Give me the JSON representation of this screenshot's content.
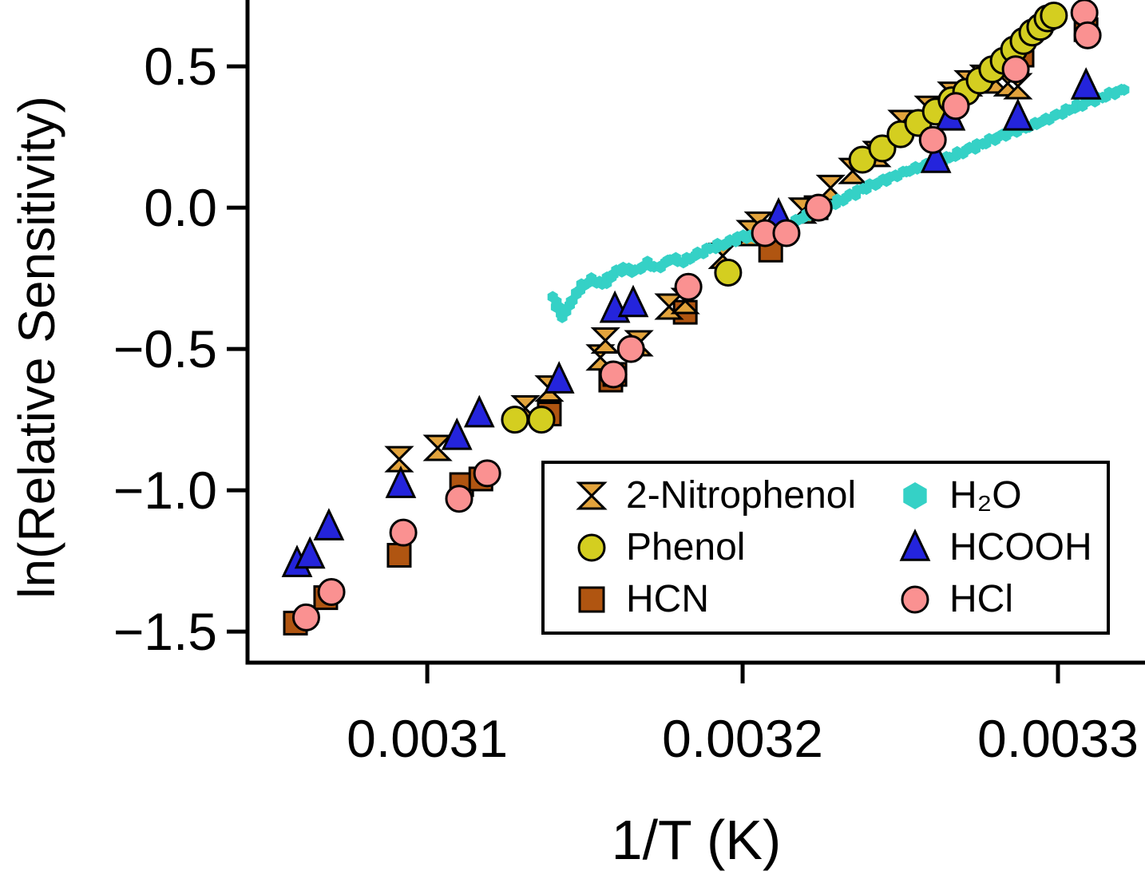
{
  "figure": {
    "background": "#FFFFFF"
  },
  "chart_data": {
    "type": "scatter",
    "title": "",
    "xlabel": "1/T (K)",
    "ylabel": "ln(Relative Sensitivity)",
    "xlim": [
      0.003043,
      0.0033276
    ],
    "ylim": [
      -1.61,
      0.735
    ],
    "grid": false,
    "legend_position": "inside-lower-right-box",
    "xticks": {
      "values": [
        0.0031,
        0.0032,
        0.0033
      ],
      "labels": [
        "0.0031",
        "0.0032",
        "0.0033"
      ]
    },
    "yticks": {
      "values": [
        0.5,
        0.0,
        -0.5,
        -1.0,
        -1.5
      ],
      "labels": [
        "0.5",
        "0.0",
        "−0.5",
        "−1.0",
        "−1.5"
      ]
    },
    "series": [
      {
        "name": "2-Nitrophenol",
        "label": "2-Nitrophenol",
        "marker": "bowtie",
        "icon": "bowtie-marker-icon",
        "color": "#E2A33C",
        "edge": "#000000",
        "points": [
          [
            0.0030911,
            -0.89
          ],
          [
            0.0031033,
            -0.85
          ],
          [
            0.0031311,
            -0.71
          ],
          [
            0.0031387,
            -0.64
          ],
          [
            0.0031549,
            -0.53
          ],
          [
            0.0031565,
            -0.47
          ],
          [
            0.0031671,
            -0.48
          ],
          [
            0.0031767,
            -0.35
          ],
          [
            0.0031818,
            -0.33
          ],
          [
            0.0031937,
            -0.17
          ],
          [
            0.0032025,
            -0.09
          ],
          [
            0.0032051,
            -0.06
          ],
          [
            0.003219,
            -0.01
          ],
          [
            0.0032279,
            0.07
          ],
          [
            0.0032349,
            0.13
          ],
          [
            0.0032425,
            0.19
          ],
          [
            0.0032506,
            0.3
          ],
          [
            0.003259,
            0.35
          ],
          [
            0.0032663,
            0.4
          ],
          [
            0.0032716,
            0.44
          ],
          [
            0.0032765,
            0.46
          ],
          [
            0.0032803,
            0.45
          ],
          [
            0.0032841,
            0.44
          ],
          [
            0.0032873,
            0.43
          ]
        ]
      },
      {
        "name": "Phenol",
        "label": "Phenol",
        "marker": "circle",
        "icon": "circle-marker-icon",
        "color": "#D4CE20",
        "edge": "#000000",
        "points": [
          [
            0.0031278,
            -0.75
          ],
          [
            0.0031362,
            -0.75
          ],
          [
            0.0031954,
            -0.23
          ],
          [
            0.003238,
            0.17
          ],
          [
            0.0032443,
            0.21
          ],
          [
            0.0032501,
            0.26
          ],
          [
            0.0032557,
            0.3
          ],
          [
            0.0032613,
            0.34
          ],
          [
            0.0032663,
            0.38
          ],
          [
            0.0032709,
            0.41
          ],
          [
            0.0032752,
            0.45
          ],
          [
            0.0032792,
            0.49
          ],
          [
            0.0032828,
            0.52
          ],
          [
            0.0032861,
            0.56
          ],
          [
            0.0032891,
            0.59
          ],
          [
            0.0032919,
            0.62
          ],
          [
            0.0032944,
            0.64
          ],
          [
            0.0032967,
            0.67
          ],
          [
            0.0032987,
            0.68
          ]
        ]
      },
      {
        "name": "HCN",
        "label": "HCN",
        "marker": "square",
        "icon": "square-marker-icon",
        "color": "#B05511",
        "edge": "#000000",
        "points": [
          [
            0.0030582,
            -1.47
          ],
          [
            0.0030678,
            -1.38
          ],
          [
            0.0030911,
            -1.23
          ],
          [
            0.0031109,
            -0.98
          ],
          [
            0.003117,
            -0.96
          ],
          [
            0.0031387,
            -0.73
          ],
          [
            0.0031582,
            -0.61
          ],
          [
            0.0031595,
            -0.59
          ],
          [
            0.0031818,
            -0.37
          ],
          [
            0.0032089,
            -0.15
          ],
          [
            0.0032233,
            0.0
          ],
          [
            0.0032886,
            0.54
          ],
          [
            0.0033089,
            0.63
          ]
        ]
      },
      {
        "name": "H2O",
        "label": "H₂O",
        "marker": "hexagon",
        "icon": "hexagon-marker-icon",
        "color": "#35D1C6",
        "edge": "none",
        "trace": true,
        "points": [
          [
            0.00314,
            -0.32
          ],
          [
            0.003143,
            -0.386
          ],
          [
            0.0031456,
            -0.334
          ],
          [
            0.0031489,
            -0.277
          ],
          [
            0.0031524,
            -0.254
          ],
          [
            0.0031557,
            -0.271
          ],
          [
            0.003159,
            -0.234
          ],
          [
            0.0031625,
            -0.214
          ],
          [
            0.0031661,
            -0.226
          ],
          [
            0.0031696,
            -0.197
          ],
          [
            0.0031734,
            -0.214
          ],
          [
            0.0031772,
            -0.18
          ],
          [
            0.003181,
            -0.191
          ],
          [
            0.0031848,
            -0.169
          ],
          [
            0.0031886,
            -0.149
          ],
          [
            0.0031924,
            -0.134
          ],
          [
            0.0031962,
            -0.12
          ],
          [
            0.0032,
            -0.1
          ],
          [
            0.0032038,
            -0.106
          ],
          [
            0.0032076,
            -0.083
          ],
          [
            0.0032114,
            -0.069
          ],
          [
            0.0032152,
            -0.057
          ],
          [
            0.003219,
            -0.034
          ],
          [
            0.0032228,
            -0.014
          ],
          [
            0.0032266,
            0.003
          ],
          [
            0.0032304,
            0.023
          ],
          [
            0.0032342,
            0.043
          ],
          [
            0.003238,
            0.066
          ],
          [
            0.0032418,
            0.083
          ],
          [
            0.0032456,
            0.1
          ],
          [
            0.0032494,
            0.117
          ],
          [
            0.0032532,
            0.134
          ],
          [
            0.003257,
            0.146
          ],
          [
            0.0032608,
            0.16
          ],
          [
            0.0032646,
            0.174
          ],
          [
            0.0032684,
            0.191
          ],
          [
            0.0032722,
            0.209
          ],
          [
            0.0032759,
            0.226
          ],
          [
            0.0032797,
            0.243
          ],
          [
            0.0032835,
            0.26
          ],
          [
            0.0032873,
            0.274
          ],
          [
            0.0032911,
            0.289
          ],
          [
            0.0032949,
            0.306
          ],
          [
            0.0032987,
            0.323
          ],
          [
            0.0033025,
            0.343
          ],
          [
            0.0033063,
            0.36
          ],
          [
            0.0033101,
            0.377
          ],
          [
            0.0033139,
            0.391
          ],
          [
            0.0033177,
            0.406
          ],
          [
            0.003321,
            0.417
          ]
        ]
      },
      {
        "name": "HCOOH",
        "label": "HCOOH",
        "marker": "triangle",
        "icon": "triangle-marker-icon",
        "color": "#2424DC",
        "edge": "#000000",
        "points": [
          [
            0.0030587,
            -1.26
          ],
          [
            0.0030628,
            -1.23
          ],
          [
            0.0030688,
            -1.13
          ],
          [
            0.0030916,
            -0.98
          ],
          [
            0.0031094,
            -0.81
          ],
          [
            0.0031165,
            -0.73
          ],
          [
            0.0031418,
            -0.61
          ],
          [
            0.0031595,
            -0.36
          ],
          [
            0.0031653,
            -0.34
          ],
          [
            0.0032114,
            -0.03
          ],
          [
            0.0032613,
            0.17
          ],
          [
            0.0032658,
            0.32
          ],
          [
            0.0032873,
            0.32
          ],
          [
            0.0033089,
            0.43
          ]
        ]
      },
      {
        "name": "HCl",
        "label": "HCl",
        "marker": "circle",
        "icon": "circle-marker-icon",
        "color": "#FA9191",
        "edge": "#000000",
        "points": [
          [
            0.0030616,
            -1.45
          ],
          [
            0.0030696,
            -1.36
          ],
          [
            0.0030924,
            -1.15
          ],
          [
            0.0031101,
            -1.03
          ],
          [
            0.003119,
            -0.94
          ],
          [
            0.003159,
            -0.59
          ],
          [
            0.0031646,
            -0.5
          ],
          [
            0.0031828,
            -0.28
          ],
          [
            0.0032071,
            -0.09
          ],
          [
            0.0032139,
            -0.09
          ],
          [
            0.0032241,
            0.0
          ],
          [
            0.0032603,
            0.24
          ],
          [
            0.0032676,
            0.36
          ],
          [
            0.0032866,
            0.49
          ],
          [
            0.0033084,
            0.69
          ],
          [
            0.0033094,
            0.61
          ]
        ]
      }
    ]
  }
}
